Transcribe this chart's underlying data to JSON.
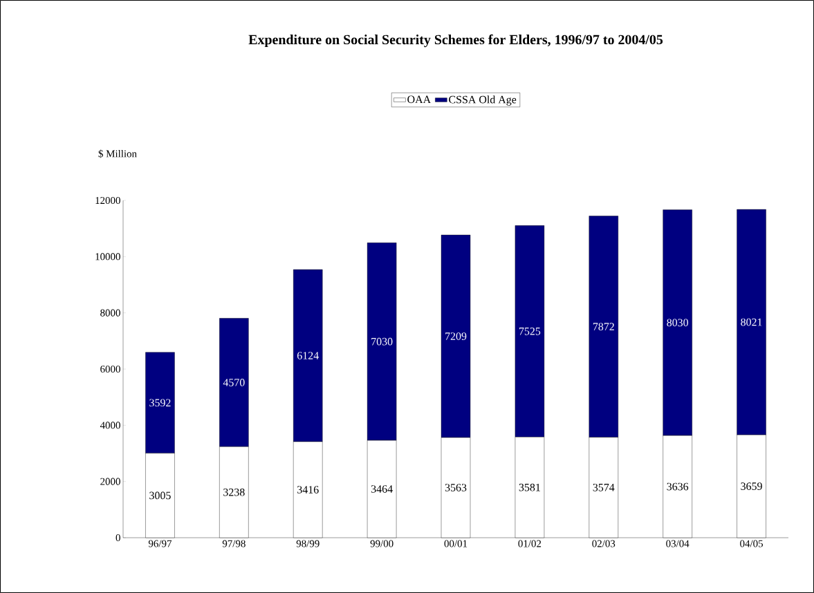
{
  "chart_data": {
    "type": "bar",
    "title": "Expenditure on Social Security Schemes for Elders, 1996/97 to 2004/05",
    "ylabel": "$ Million",
    "categories": [
      "96/97",
      "97/98",
      "98/99",
      "99/00",
      "00/01",
      "01/02",
      "02/03",
      "03/04",
      "04/05"
    ],
    "series": [
      {
        "name": "OAA",
        "color": "#ffffff",
        "values": [
          3005,
          3238,
          3416,
          3464,
          3563,
          3581,
          3574,
          3636,
          3659
        ]
      },
      {
        "name": "CSSA Old Age",
        "color": "#000080",
        "values": [
          3592,
          4570,
          6124,
          7030,
          7209,
          7525,
          7872,
          8030,
          8021
        ]
      }
    ],
    "stacked": true,
    "data_labels": true,
    "legend": "top",
    "ylim": [
      0,
      12000
    ],
    "yticks": [
      0,
      2000,
      4000,
      6000,
      8000,
      10000,
      12000
    ]
  }
}
